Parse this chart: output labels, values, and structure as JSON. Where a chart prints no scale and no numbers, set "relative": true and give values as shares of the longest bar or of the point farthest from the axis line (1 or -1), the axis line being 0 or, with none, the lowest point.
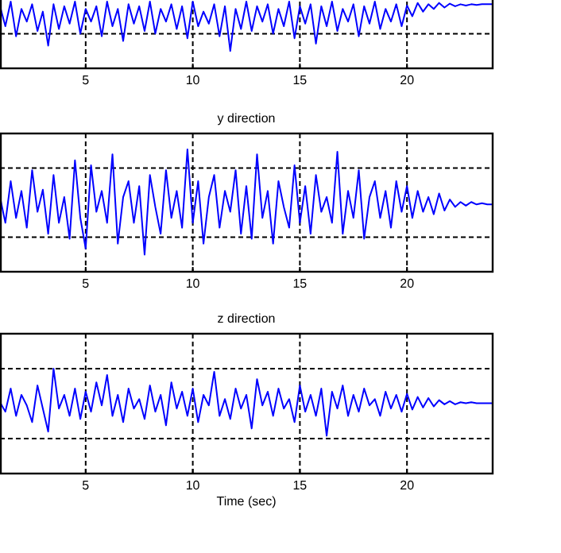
{
  "chart_data": [
    {
      "type": "line",
      "relative": true,
      "grid": true,
      "xlim": [
        1,
        24
      ],
      "xticks": [
        5,
        10,
        15,
        20
      ],
      "x": [
        1,
        1.25,
        1.5,
        1.75,
        2,
        2.25,
        2.5,
        2.75,
        3,
        3.25,
        3.5,
        3.75,
        4,
        4.25,
        4.5,
        4.75,
        5,
        5.25,
        5.5,
        5.75,
        6,
        6.25,
        6.5,
        6.75,
        7,
        7.25,
        7.5,
        7.75,
        8,
        8.25,
        8.5,
        8.75,
        9,
        9.25,
        9.5,
        9.75,
        10,
        10.25,
        10.5,
        10.75,
        11,
        11.25,
        11.5,
        11.75,
        12,
        12.25,
        12.5,
        12.75,
        13,
        13.25,
        13.5,
        13.75,
        14,
        14.25,
        14.5,
        14.75,
        15,
        15.25,
        15.5,
        15.75,
        16,
        16.25,
        16.5,
        16.75,
        17,
        17.25,
        17.5,
        17.75,
        18,
        18.25,
        18.5,
        18.75,
        19,
        19.25,
        19.5,
        19.75,
        20,
        20.25,
        20.5,
        20.75,
        21,
        21.25,
        21.5,
        21.75,
        22,
        22.25,
        22.5,
        22.75,
        23,
        23.25,
        23.5,
        23.75,
        24
      ],
      "series": [
        {
          "color": "#0000ff",
          "values": [
            0.93,
            0.63,
            1,
            0.48,
            0.89,
            0.7,
            0.96,
            0.56,
            0.85,
            0.34,
            0.96,
            0.59,
            0.93,
            0.67,
            1,
            0.52,
            0.89,
            0.7,
            0.93,
            0.48,
            1,
            0.63,
            0.89,
            0.41,
            0.96,
            0.67,
            0.93,
            0.56,
            1,
            0.52,
            0.89,
            0.7,
            0.96,
            0.59,
            0.93,
            0.45,
            1,
            0.63,
            0.85,
            0.67,
            0.96,
            0.48,
            0.93,
            0.26,
            0.89,
            0.59,
            1,
            0.56,
            0.93,
            0.7,
            0.96,
            0.52,
            0.89,
            0.63,
            1,
            0.45,
            0.93,
            0.67,
            0.96,
            0.37,
            0.93,
            0.63,
            1,
            0.56,
            0.89,
            0.7,
            0.96,
            0.48,
            0.93,
            0.67,
            1,
            0.59,
            0.89,
            0.7,
            0.96,
            0.63,
            0.94,
            0.78,
            0.98,
            0.85,
            0.96,
            0.89,
            0.98,
            0.91,
            0.97,
            0.93,
            0.96,
            0.94,
            0.96,
            0.95,
            0.96,
            0.96,
            0.96
          ]
        }
      ]
    },
    {
      "type": "line",
      "relative": true,
      "grid": true,
      "title": "y direction",
      "xlim": [
        1,
        24
      ],
      "xticks": [
        5,
        10,
        15,
        20
      ],
      "x": [
        1,
        1.25,
        1.5,
        1.75,
        2,
        2.25,
        2.5,
        2.75,
        3,
        3.25,
        3.5,
        3.75,
        4,
        4.25,
        4.5,
        4.75,
        5,
        5.25,
        5.5,
        5.75,
        6,
        6.25,
        6.5,
        6.75,
        7,
        7.25,
        7.5,
        7.75,
        8,
        8.25,
        8.5,
        8.75,
        9,
        9.25,
        9.5,
        9.75,
        10,
        10.25,
        10.5,
        10.75,
        11,
        11.25,
        11.5,
        11.75,
        12,
        12.25,
        12.5,
        12.75,
        13,
        13.25,
        13.5,
        13.75,
        14,
        14.25,
        14.5,
        14.75,
        15,
        15.25,
        15.5,
        15.75,
        16,
        16.25,
        16.5,
        16.75,
        17,
        17.25,
        17.5,
        17.75,
        18,
        18.25,
        18.5,
        18.75,
        19,
        19.25,
        19.5,
        19.75,
        20,
        20.25,
        20.5,
        20.75,
        21,
        21.25,
        21.5,
        21.75,
        22,
        22.25,
        22.5,
        22.75,
        23,
        23.25,
        23.5,
        23.75,
        24
      ],
      "series": [
        {
          "color": "#0000ff",
          "values": [
            0.61,
            0.4,
            0.74,
            0.44,
            0.66,
            0.36,
            0.83,
            0.49,
            0.67,
            0.31,
            0.79,
            0.4,
            0.61,
            0.27,
            0.91,
            0.44,
            0.19,
            0.87,
            0.49,
            0.66,
            0.4,
            0.96,
            0.23,
            0.61,
            0.74,
            0.4,
            0.7,
            0.14,
            0.79,
            0.53,
            0.31,
            0.83,
            0.44,
            0.66,
            0.36,
            1,
            0.4,
            0.74,
            0.23,
            0.61,
            0.79,
            0.36,
            0.66,
            0.49,
            0.83,
            0.31,
            0.7,
            0.27,
            0.96,
            0.44,
            0.66,
            0.23,
            0.74,
            0.53,
            0.36,
            0.87,
            0.4,
            0.7,
            0.31,
            0.79,
            0.49,
            0.61,
            0.4,
            0.98,
            0.31,
            0.66,
            0.44,
            0.83,
            0.27,
            0.61,
            0.74,
            0.44,
            0.66,
            0.36,
            0.74,
            0.49,
            0.7,
            0.44,
            0.66,
            0.49,
            0.61,
            0.47,
            0.64,
            0.5,
            0.59,
            0.53,
            0.57,
            0.54,
            0.57,
            0.55,
            0.56,
            0.55,
            0.55
          ]
        }
      ]
    },
    {
      "type": "line",
      "relative": true,
      "grid": true,
      "title": "z direction",
      "xlabel": "Time (sec)",
      "xlim": [
        1,
        24
      ],
      "xticks": [
        5,
        10,
        15,
        20
      ],
      "x": [
        1,
        1.25,
        1.5,
        1.75,
        2,
        2.25,
        2.5,
        2.75,
        3,
        3.25,
        3.5,
        3.75,
        4,
        4.25,
        4.5,
        4.75,
        5,
        5.25,
        5.5,
        5.75,
        6,
        6.25,
        6.5,
        6.75,
        7,
        7.25,
        7.5,
        7.75,
        8,
        8.25,
        8.5,
        8.75,
        9,
        9.25,
        9.5,
        9.75,
        10,
        10.25,
        10.5,
        10.75,
        11,
        11.25,
        11.5,
        11.75,
        12,
        12.25,
        12.5,
        12.75,
        13,
        13.25,
        13.5,
        13.75,
        14,
        14.25,
        14.5,
        14.75,
        15,
        15.25,
        15.5,
        15.75,
        16,
        16.25,
        16.5,
        16.75,
        17,
        17.25,
        17.5,
        17.75,
        18,
        18.25,
        18.5,
        18.75,
        19,
        19.25,
        19.5,
        19.75,
        20,
        20.25,
        20.5,
        20.75,
        21,
        21.25,
        21.5,
        21.75,
        22,
        22.25,
        22.5,
        22.75,
        23,
        23.25,
        23.5,
        23.75,
        24
      ],
      "series": [
        {
          "color": "#0000ff",
          "values": [
            0.68,
            0.59,
            0.81,
            0.55,
            0.75,
            0.65,
            0.49,
            0.84,
            0.62,
            0.4,
            1,
            0.62,
            0.75,
            0.55,
            0.81,
            0.52,
            0.78,
            0.59,
            0.87,
            0.65,
            0.94,
            0.55,
            0.75,
            0.49,
            0.81,
            0.62,
            0.71,
            0.52,
            0.84,
            0.59,
            0.75,
            0.46,
            0.87,
            0.62,
            0.78,
            0.55,
            0.81,
            0.49,
            0.75,
            0.65,
            0.97,
            0.55,
            0.71,
            0.52,
            0.81,
            0.62,
            0.75,
            0.43,
            0.9,
            0.65,
            0.78,
            0.55,
            0.81,
            0.62,
            0.71,
            0.49,
            0.84,
            0.59,
            0.75,
            0.55,
            0.81,
            0.36,
            0.78,
            0.62,
            0.84,
            0.55,
            0.75,
            0.59,
            0.81,
            0.65,
            0.71,
            0.55,
            0.78,
            0.62,
            0.75,
            0.59,
            0.76,
            0.61,
            0.73,
            0.63,
            0.72,
            0.64,
            0.7,
            0.66,
            0.69,
            0.66,
            0.68,
            0.67,
            0.68,
            0.67,
            0.67,
            0.67,
            0.67
          ]
        }
      ]
    }
  ]
}
